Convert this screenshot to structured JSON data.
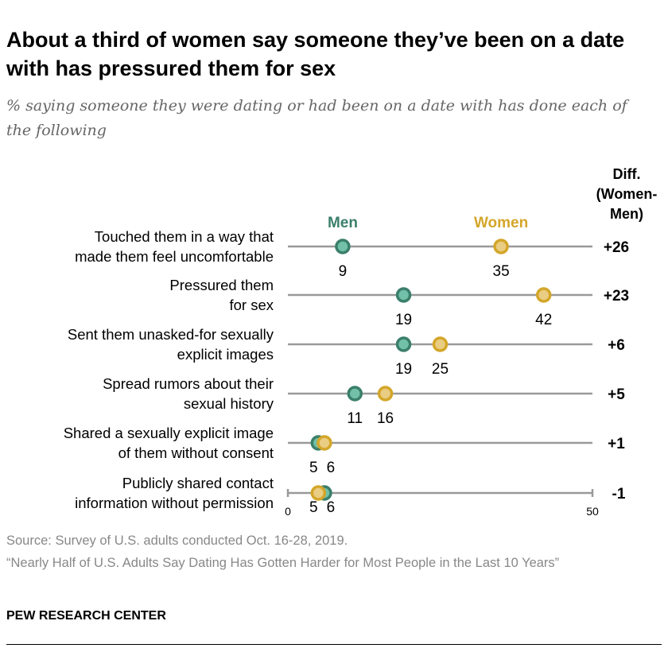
{
  "title": "About a third of women say someone they’ve been on a date with has pressured them for sex",
  "subtitle": "% saying someone they were dating or had been on a date with has done each of the following",
  "chart_data": {
    "type": "dot",
    "xlim": [
      0,
      50
    ],
    "x_ticks": [
      "0",
      "50"
    ],
    "diff_header": [
      "Diff.",
      "(Women-",
      "Men)"
    ],
    "series": [
      {
        "name": "Men",
        "color": "#3b7f6b",
        "fill": "#72c0a8"
      },
      {
        "name": "Women",
        "color": "#d4a62a",
        "fill": "#e9cd82"
      }
    ],
    "categories": [
      {
        "label": [
          "Touched them in a way that",
          "made them feel uncomfortable"
        ],
        "men": 9,
        "women": 35,
        "diff": "+26"
      },
      {
        "label": [
          "Pressured them",
          "for sex"
        ],
        "men": 19,
        "women": 42,
        "diff": "+23"
      },
      {
        "label": [
          "Sent them unasked-for sexually",
          "explicit images"
        ],
        "men": 19,
        "women": 25,
        "diff": "+6"
      },
      {
        "label": [
          "Spread rumors about their",
          "sexual history"
        ],
        "men": 11,
        "women": 16,
        "diff": "+5"
      },
      {
        "label": [
          "Shared a sexually explicit image",
          "of them without consent"
        ],
        "men": 5,
        "women": 6,
        "diff": "+1"
      },
      {
        "label": [
          "Publicly shared contact",
          "information without permission"
        ],
        "men": 6,
        "women": 5,
        "diff": "-1"
      }
    ]
  },
  "source": "Source: Survey of U.S. adults conducted Oct. 16-28, 2019.",
  "report": "“Nearly Half of U.S. Adults Say Dating Has Gotten Harder for Most People in the Last 10 Years”",
  "brand": "PEW RESEARCH CENTER"
}
